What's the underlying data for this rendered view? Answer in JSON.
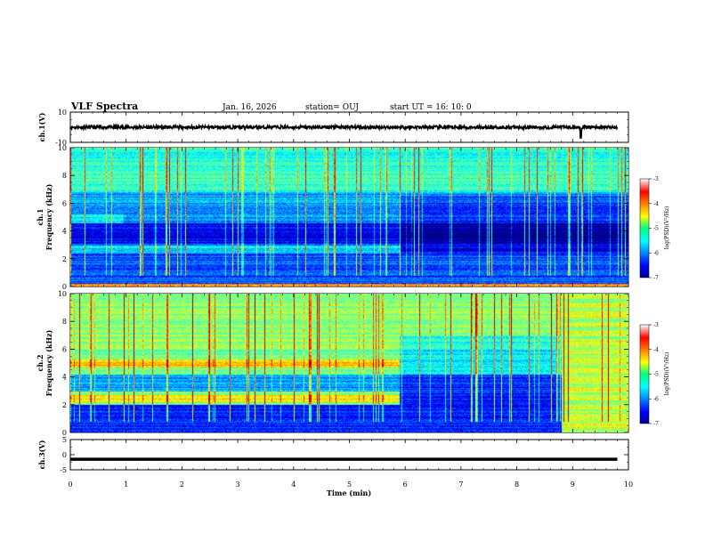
{
  "header": {
    "title": "VLF Spectra",
    "date": "Jan. 16, 2026",
    "station": "station= OUJ",
    "start": "start  UT =  16: 10: 0"
  },
  "chart_data": [
    {
      "type": "line",
      "name": "ch1-waveform",
      "ylabel": "ch.1(V)",
      "ylim": [
        -10,
        10
      ],
      "yticks": [
        "10",
        "-10"
      ],
      "x": [
        0,
        1,
        2,
        3,
        4,
        5,
        6,
        7,
        8,
        9,
        9.15,
        9.8
      ],
      "y": [
        0,
        0,
        0,
        0,
        0,
        0,
        0,
        0,
        0,
        0,
        -7,
        0
      ]
    },
    {
      "type": "heatmap",
      "name": "ch1-spectrogram",
      "ylabel": "ch.1",
      "ylabel2": "Frequency (kHz)",
      "ylim": [
        0,
        10
      ],
      "yticks": [
        "0",
        "2",
        "4",
        "6",
        "8",
        "10"
      ],
      "colorbar": {
        "label": "log(PSD)(V²/Hz)",
        "ticks": [
          "-3",
          "-4",
          "-5",
          "-6",
          "-7"
        ],
        "range": [
          -7,
          -3
        ]
      }
    },
    {
      "type": "heatmap",
      "name": "ch2-spectrogram",
      "ylabel": "ch.2",
      "ylabel2": "Frequency (kHz)",
      "ylim": [
        0,
        10
      ],
      "yticks": [
        "0",
        "2",
        "4",
        "6",
        "8",
        "10"
      ],
      "colorbar": {
        "label": "log(PSD)(V²/Hz)",
        "ticks": [
          "-3",
          "-4",
          "-5",
          "-6",
          "-7"
        ],
        "range": [
          -7,
          -3
        ]
      }
    },
    {
      "type": "line",
      "name": "ch3-waveform",
      "ylabel": "ch.3(V)",
      "ylim": [
        -5,
        5
      ],
      "yticks": [
        "5",
        "0",
        "-5"
      ],
      "x": [
        0,
        9.8
      ],
      "y": [
        -1.5,
        -1.5
      ]
    }
  ],
  "xaxis": {
    "label": "Time (min)",
    "range": [
      0,
      10
    ],
    "ticks": [
      "0",
      "1",
      "2",
      "3",
      "4",
      "5",
      "6",
      "7",
      "8",
      "9",
      "10"
    ]
  }
}
